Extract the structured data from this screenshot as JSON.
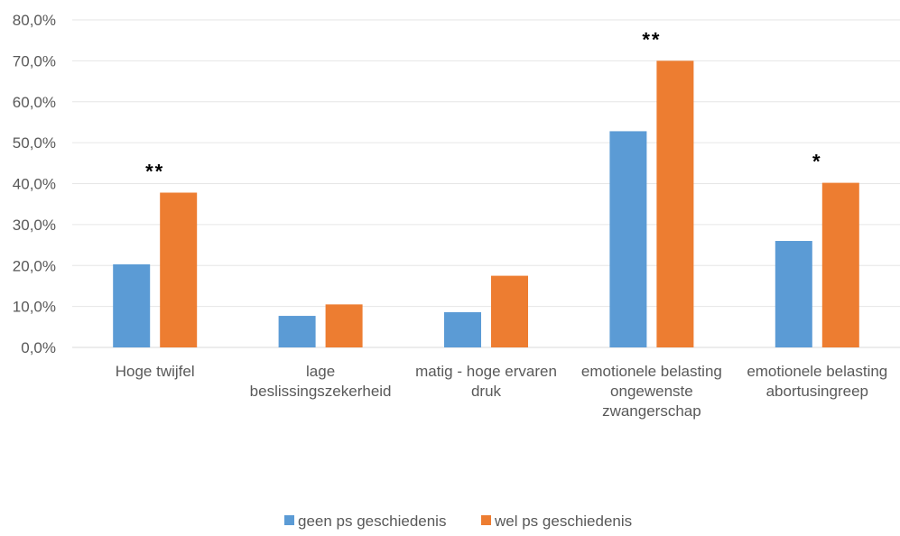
{
  "chart_data": {
    "type": "bar",
    "categories": [
      [
        "Hoge twijfel"
      ],
      [
        "lage",
        "beslissingszekerheid"
      ],
      [
        "matig - hoge ervaren",
        "druk"
      ],
      [
        "emotionele belasting",
        "ongewenste",
        "zwangerschap"
      ],
      [
        "emotionele belasting",
        "abortusingreep"
      ]
    ],
    "series": [
      {
        "name": "geen ps geschiedenis",
        "color": "#5b9bd5",
        "values": [
          20.3,
          7.7,
          8.6,
          52.8,
          26.0
        ]
      },
      {
        "name": "wel ps geschiedenis",
        "color": "#ed7d31",
        "values": [
          37.8,
          10.5,
          17.5,
          70.0,
          40.2
        ]
      }
    ],
    "significance": [
      "**",
      "",
      "",
      "**",
      "*"
    ],
    "yticks": [
      "0,0%",
      "10,0%",
      "20,0%",
      "30,0%",
      "40,0%",
      "50,0%",
      "60,0%",
      "70,0%",
      "80,0%"
    ],
    "ylim": [
      0,
      80
    ],
    "grid": true,
    "legend_position": "bottom",
    "title": "",
    "xlabel": "",
    "ylabel": ""
  }
}
